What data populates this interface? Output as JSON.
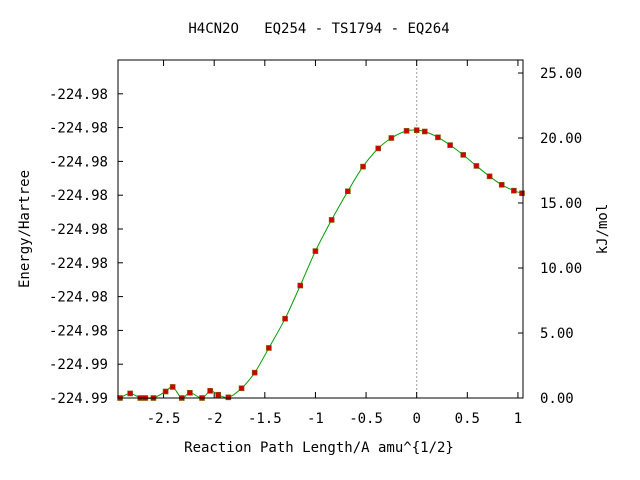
{
  "chart_data": {
    "type": "line",
    "title": "H4CN2O   EQ254 - TS1794 - EQ264",
    "xlabel": "Reaction Path Length/A amu^{1/2}",
    "ylabel": "Energy/Hartree",
    "y2label": "kJ/mol",
    "xlim": [
      -2.95,
      1.05
    ],
    "y2lim": [
      0,
      26
    ],
    "grid": false,
    "legend": "none",
    "ts_marker_x": 0,
    "x_ticks": [
      -2.5,
      -2,
      -1.5,
      -1,
      -0.5,
      0,
      0.5,
      1
    ],
    "x_tick_labels": [
      "-2.5",
      "-2",
      "-1.5",
      "-1",
      "-0.5",
      "0",
      "0.5",
      "1"
    ],
    "y_ticks_kj": [
      0,
      2.6,
      5.2,
      7.8,
      10.4,
      13.0,
      15.6,
      18.2,
      20.8,
      23.4
    ],
    "y_tick_labels": [
      "-224.99",
      "-224.99",
      "-224.98",
      "-224.98",
      "-224.98",
      "-224.98",
      "-224.98",
      "-224.98",
      "-224.98",
      "-224.98"
    ],
    "y2_ticks": [
      0,
      5,
      10,
      15,
      20,
      25
    ],
    "y2_tick_labels": [
      "0.00",
      "5.00",
      "10.00",
      "15.00",
      "20.00",
      "25.00"
    ],
    "colors": {
      "curve": "#00a000",
      "points": "#cc0000",
      "point_edge": "#806000"
    },
    "series": [
      {
        "x": [
          -2.93,
          -2.83,
          -2.73,
          -2.68,
          -2.6,
          -2.48,
          -2.41,
          -2.32,
          -2.24,
          -2.12,
          -2.04,
          -1.96,
          -1.86,
          -1.73,
          -1.6,
          -1.46,
          -1.3,
          -1.15,
          -1.0,
          -0.84,
          -0.68,
          -0.53,
          -0.38,
          -0.25,
          -0.1,
          0.0,
          0.08,
          0.21,
          0.33,
          0.46,
          0.59,
          0.72,
          0.84,
          0.96,
          1.04
        ],
        "y": [
          0.0,
          0.35,
          0.0,
          0.0,
          0.0,
          0.5,
          0.85,
          0.0,
          0.4,
          0.0,
          0.55,
          0.25,
          0.05,
          0.75,
          1.95,
          3.85,
          6.1,
          8.65,
          11.3,
          13.7,
          15.9,
          17.8,
          19.2,
          20.0,
          20.55,
          20.6,
          20.5,
          20.05,
          19.45,
          18.7,
          17.85,
          17.05,
          16.4,
          15.95,
          15.75
        ]
      }
    ]
  }
}
